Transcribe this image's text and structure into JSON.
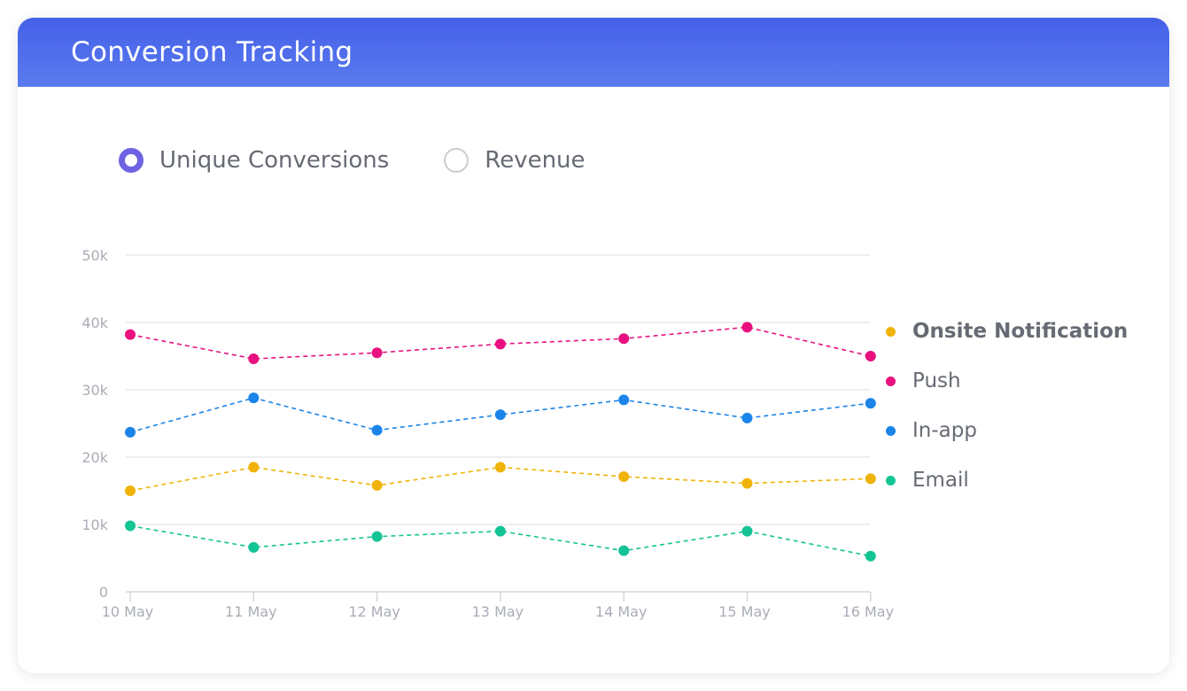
{
  "header": {
    "title": "Conversion Tracking"
  },
  "toggles": [
    {
      "label": "Unique Conversions",
      "selected": true
    },
    {
      "label": "Revenue",
      "selected": false
    }
  ],
  "colors": {
    "accent": "#6d63e2",
    "onsite": "#f0b30a",
    "push": "#e8117f",
    "inapp": "#1a84e8",
    "email": "#14c495"
  },
  "chart_data": {
    "type": "line",
    "x": [
      "10 May",
      "11 May",
      "12 May",
      "13 May",
      "14 May",
      "15 May",
      "16 May"
    ],
    "yticks": [
      "0",
      "10k",
      "20k",
      "30k",
      "40k",
      "50k"
    ],
    "ylim": [
      0,
      50000
    ],
    "grid": true,
    "legend_position": "right",
    "series": [
      {
        "name": "Onsite Notification",
        "color": "#f0b30a",
        "bold": true,
        "values": [
          15000,
          18500,
          15800,
          18500,
          17100,
          16100,
          16800
        ]
      },
      {
        "name": "Push",
        "color": "#e8117f",
        "bold": false,
        "values": [
          38200,
          34600,
          35500,
          36800,
          37600,
          39300,
          35000
        ]
      },
      {
        "name": "In-app",
        "color": "#1a84e8",
        "bold": false,
        "values": [
          23700,
          28800,
          24000,
          26300,
          28500,
          25800,
          28000
        ]
      },
      {
        "name": "Email",
        "color": "#14c495",
        "bold": false,
        "values": [
          9800,
          6600,
          8200,
          9000,
          6100,
          9000,
          5300
        ]
      }
    ]
  }
}
